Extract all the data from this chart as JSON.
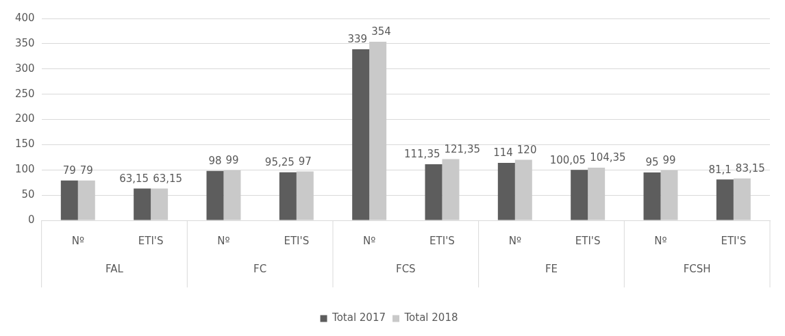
{
  "chart_data": {
    "type": "bar",
    "categories": [
      "Nº",
      "ETI'S",
      "Nº",
      "ETI'S",
      "Nº",
      "ETI'S",
      "Nº",
      "ETI'S",
      "Nº",
      "ETI'S"
    ],
    "annotations": [
      "FAL",
      "FC",
      "FCS",
      "FE",
      "FCSH"
    ],
    "series": [
      {
        "name": "Total 2017",
        "color": "#5d5d5d",
        "values": [
          79,
          63.15,
          98,
          95.25,
          339,
          111.35,
          114,
          100.05,
          95,
          81.1
        ],
        "value_labels": [
          "79",
          "63,15",
          "98",
          "95,25",
          "339",
          "111,35",
          "114",
          "100,05",
          "95",
          "81,1"
        ]
      },
      {
        "name": "Total 2018",
        "color": "#c9c9c9",
        "values": [
          79,
          63.15,
          99,
          97,
          354,
          121.35,
          120,
          104.35,
          99,
          83.15
        ],
        "value_labels": [
          "79",
          "63,15",
          "99",
          "97",
          "354",
          "121,35",
          "120",
          "104,35",
          "99",
          "83,15"
        ]
      }
    ],
    "ylim": [
      0,
      400
    ],
    "yticks": [
      0,
      50,
      100,
      150,
      200,
      250,
      300,
      350,
      400
    ],
    "grid": "y",
    "legend": "bottom"
  }
}
